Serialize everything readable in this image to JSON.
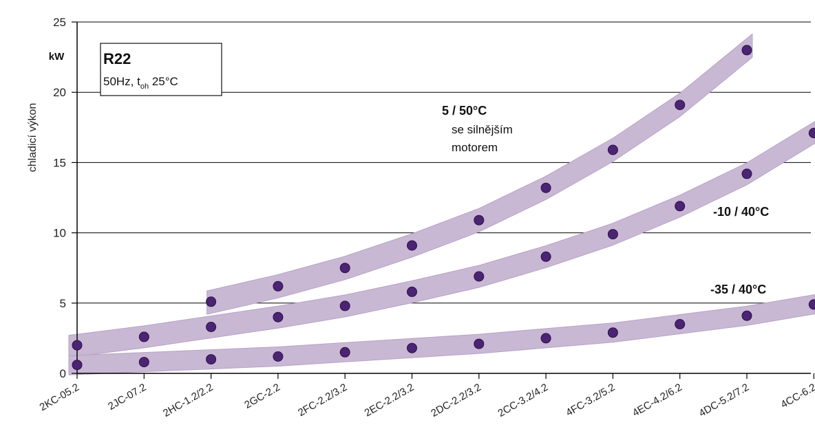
{
  "chart_data": {
    "type": "scatter",
    "title": "",
    "xlabel": "",
    "ylabel": "chladicí výkon",
    "y_unit": "kW",
    "ylim": [
      0,
      25
    ],
    "yticks": [
      "0",
      "5",
      "10",
      "15",
      "20",
      "25"
    ],
    "categories": [
      "2KC-05.2",
      "2JC-07.2",
      "2HC-1.2/2.2",
      "2GC-2.2",
      "2FC-2.2/3.2",
      "2EC-2.2/3.2",
      "2DC-2.2/3.2",
      "2CC-3.2/4.2",
      "4FC-3.2/5.2",
      "4EC-4.2/6.2",
      "4DC-5.2/7.2",
      "4CC-6.2"
    ],
    "grid": true,
    "legend_box": {
      "title": "R22",
      "line_prefix": "50Hz, t",
      "line_sub": "oh",
      "line_suffix": " 25°C"
    },
    "series": [
      {
        "name": "5 / 50°C",
        "note_lines": [
          "se silnějším",
          "motorem"
        ],
        "values": [
          null,
          null,
          5.1,
          6.2,
          7.5,
          9.1,
          10.9,
          13.2,
          15.9,
          19.1,
          23.0,
          null
        ]
      },
      {
        "name": "-10 / 40°C",
        "values": [
          2.0,
          2.6,
          3.3,
          4.0,
          4.8,
          5.8,
          6.9,
          8.3,
          9.9,
          11.9,
          14.2,
          17.1
        ]
      },
      {
        "name": "-35 / 40°C",
        "values": [
          0.6,
          0.8,
          1.0,
          1.2,
          1.5,
          1.8,
          2.1,
          2.5,
          2.9,
          3.5,
          4.1,
          4.9
        ]
      }
    ],
    "colors": {
      "band": "#c9b8d4",
      "band_edge": "#b7a2c6",
      "point": "#4b2473",
      "point_stroke": "#2a1245",
      "grid": "#000000"
    }
  }
}
